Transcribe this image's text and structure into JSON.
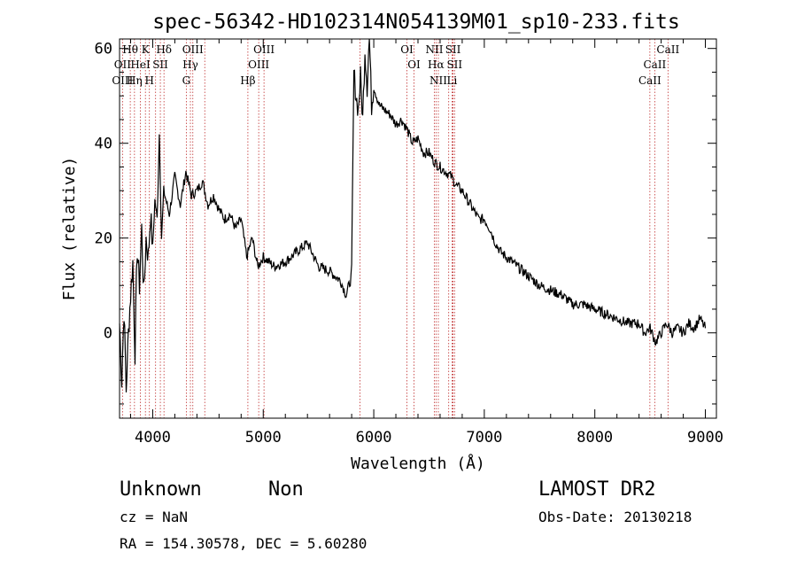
{
  "chart_data": {
    "type": "line",
    "title": "spec-56342-HD102314N054139M01_sp10-233.fits",
    "xlabel": "Wavelength (Å)",
    "ylabel": "Flux (relative)",
    "xlim": [
      3700,
      9100
    ],
    "ylim": [
      -18,
      62
    ],
    "xticks": [
      4000,
      5000,
      6000,
      7000,
      8000,
      9000
    ],
    "yticks": [
      0,
      20,
      40,
      60
    ],
    "series": [
      {
        "x": [
          3700,
          3720,
          3740,
          3760,
          3780,
          3800,
          3820,
          3840,
          3860,
          3880,
          3900,
          3920,
          3940,
          3960,
          3980,
          4000,
          4020,
          4040,
          4060,
          4080,
          4100,
          4150,
          4200,
          4250,
          4300,
          4350,
          4400,
          4450,
          4500,
          4550,
          4600,
          4650,
          4700,
          4750,
          4800,
          4850,
          4900,
          4950,
          5000,
          5100,
          5200,
          5300,
          5400,
          5500,
          5600,
          5700,
          5750,
          5800,
          5820,
          5840,
          5860,
          5880,
          5900,
          5920,
          5940,
          5960,
          5980,
          6000,
          6050,
          6100,
          6150,
          6200,
          6250,
          6300,
          6350,
          6400,
          6450,
          6500,
          6550,
          6600,
          6650,
          6700,
          6750,
          6800,
          6850,
          6900,
          6950,
          7000,
          7050,
          7100,
          7150,
          7200,
          7300,
          7400,
          7500,
          7600,
          7700,
          7800,
          7900,
          8000,
          8100,
          8200,
          8300,
          8400,
          8450,
          8500,
          8550,
          8600,
          8650,
          8700,
          8750,
          8800,
          8850,
          8900,
          8950,
          9000
        ],
        "y": [
          2,
          -10,
          5,
          -12,
          0,
          8,
          15,
          -4,
          18,
          10,
          22,
          8,
          20,
          16,
          25,
          18,
          28,
          24,
          42,
          20,
          30,
          25,
          33,
          27,
          34,
          29,
          30,
          32,
          27,
          29,
          26,
          24,
          25,
          22,
          24,
          16,
          20,
          14,
          16,
          14,
          15,
          17,
          19,
          14,
          13,
          11,
          8,
          12,
          55,
          50,
          47,
          54,
          45,
          60,
          52,
          63,
          48,
          52,
          48,
          47,
          46,
          44,
          45,
          43,
          40,
          41,
          38,
          38,
          36,
          35,
          34,
          33,
          31,
          30,
          28,
          26,
          24,
          24,
          22,
          19,
          17,
          16,
          14,
          12,
          10,
          9,
          8,
          6,
          6,
          5,
          4,
          3,
          2,
          2,
          0,
          1,
          -2,
          0,
          2,
          0,
          1,
          0,
          2,
          1,
          3,
          1
        ]
      }
    ],
    "spectral_lines": [
      {
        "label": "Hθ",
        "row": 1,
        "positions": [
          3797
        ]
      },
      {
        "label": "OII",
        "row": 2,
        "positions": [
          3727
        ]
      },
      {
        "label": "OIII",
        "row": 3,
        "positions": [
          3727
        ]
      },
      {
        "label": "HeI",
        "row": 2,
        "positions": [
          3889
        ]
      },
      {
        "label": "Hη",
        "row": 3,
        "positions": [
          3835
        ]
      },
      {
        "label": "K",
        "row": 1,
        "positions": [
          3934
        ]
      },
      {
        "label": "SII",
        "row": 2,
        "positions": [
          4069
        ]
      },
      {
        "label": "H",
        "row": 3,
        "positions": [
          3970
        ]
      },
      {
        "label": "Hδ",
        "row": 1,
        "positions": [
          4102
        ]
      },
      {
        "label": "OIII",
        "row": 1,
        "positions": [
          4363
        ]
      },
      {
        "label": "Hγ",
        "row": 2,
        "positions": [
          4341
        ]
      },
      {
        "label": "G",
        "row": 3,
        "positions": [
          4304
        ]
      },
      {
        "label": "OIII",
        "row": 1,
        "positions": [
          5007
        ]
      },
      {
        "label": "OIII",
        "row": 2,
        "positions": [
          4959
        ]
      },
      {
        "label": "Hβ",
        "row": 3,
        "positions": [
          4861
        ]
      },
      {
        "label": "OI",
        "row": 1,
        "positions": [
          6300
        ]
      },
      {
        "label": "OI",
        "row": 2,
        "positions": [
          6364
        ]
      },
      {
        "label": "NII",
        "row": 1,
        "positions": [
          6548
        ]
      },
      {
        "label": "SII",
        "row": 1,
        "positions": [
          6717
        ]
      },
      {
        "label": "Hα",
        "row": 2,
        "positions": [
          6563
        ]
      },
      {
        "label": "SII",
        "row": 2,
        "positions": [
          6731
        ]
      },
      {
        "label": "NII",
        "row": 3,
        "positions": [
          6584
        ]
      },
      {
        "label": "Li",
        "row": 3,
        "positions": [
          6708
        ]
      },
      {
        "label": "CaII",
        "row": 1,
        "positions": [
          8662
        ]
      },
      {
        "label": "CaII",
        "row": 2,
        "positions": [
          8542
        ]
      },
      {
        "label": "CaII",
        "row": 3,
        "positions": [
          8498
        ]
      }
    ],
    "extra_marker_lines": [
      3889,
      4026,
      4471,
      5876,
      6678,
      6716
    ],
    "colors": {
      "spectrum": "#000000",
      "marker": "#c03030",
      "axes": "#000000"
    }
  },
  "footer": {
    "object_class": "Unknown",
    "subclass": "Non",
    "survey": "LAMOST DR2",
    "cz": "cz = NaN",
    "obs_date": "Obs-Date: 20130218",
    "radec": "RA = 154.30578, DEC =   5.60280"
  }
}
